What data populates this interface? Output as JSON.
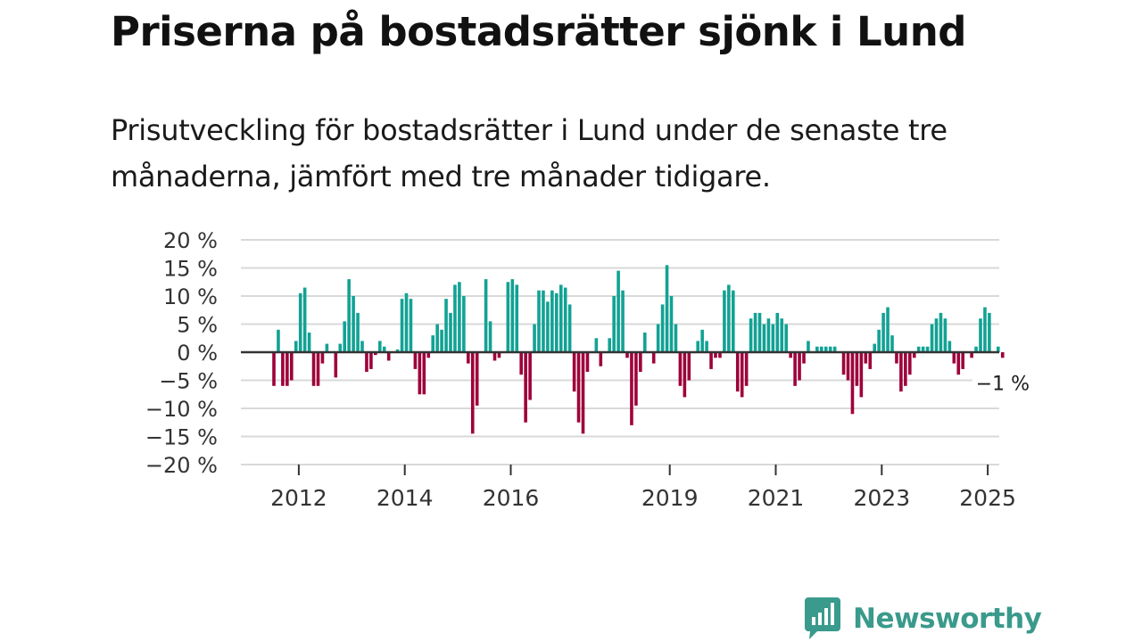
{
  "title": "Priserna på bostadsrätter sjönk i Lund",
  "subtitle": "Prisutveckling för bostadsrätter i Lund under de senaste tre månaderna, jämfört med tre månader tidigare.",
  "brand": {
    "name": "Newsworthy",
    "logo_icon": "newsworthy-logo-icon"
  },
  "colors": {
    "positive": "#12a294",
    "negative": "#9e003a",
    "grid": "#d9d9d9",
    "zero_line": "#333333",
    "brand": "#3a9a8c"
  },
  "chart_data": {
    "type": "bar",
    "title": "Priserna på bostadsrätter sjönk i Lund",
    "xlabel": "",
    "ylabel": "",
    "ylim": [
      -20,
      20
    ],
    "y_ticks": [
      20,
      15,
      10,
      5,
      0,
      -5,
      -10,
      -15,
      -20
    ],
    "y_tick_labels": [
      "20 %",
      "15 %",
      "10 %",
      "5 %",
      "0 %",
      "−5 %",
      "−10 %",
      "−15 %",
      "−20 %"
    ],
    "x_ticks": [
      {
        "label": "2012",
        "index": 6
      },
      {
        "label": "2014",
        "index": 30
      },
      {
        "label": "2016",
        "index": 54
      },
      {
        "label": "2019",
        "index": 90
      },
      {
        "label": "2021",
        "index": 114
      },
      {
        "label": "2023",
        "index": 138
      },
      {
        "label": "2025",
        "index": 162
      }
    ],
    "last_value_label": "−1 %",
    "values": [
      -6,
      4,
      -6,
      -6,
      -5,
      2,
      10.5,
      11.5,
      3.5,
      -6,
      -6,
      -2,
      1.5,
      0,
      -4.5,
      1.5,
      5.5,
      13,
      10,
      7,
      2,
      -3.5,
      -3,
      -0.5,
      2,
      1,
      -1.5,
      0,
      0.5,
      9.5,
      10.5,
      9.5,
      -3,
      -7.5,
      -7.5,
      -1,
      3,
      5,
      4,
      9.5,
      7,
      12,
      12.5,
      10,
      -2,
      -14.5,
      -9.5,
      0,
      13,
      5.5,
      -1.5,
      -1,
      0,
      12.5,
      13,
      12,
      -4,
      -12.5,
      -8.5,
      5,
      11,
      11,
      9,
      11,
      10.5,
      12,
      11.5,
      8.5,
      -7,
      -12.5,
      -14.5,
      -3.5,
      0,
      2.5,
      -2.5,
      0,
      2.5,
      10,
      14.5,
      11,
      -1,
      -13,
      -9.5,
      -3.5,
      3.5,
      0,
      -2,
      5,
      8.5,
      15.5,
      10,
      5,
      -6,
      -8,
      -5,
      0,
      2,
      4,
      2,
      -3,
      -1,
      -1,
      11,
      12,
      11,
      -7,
      -8,
      -6,
      6,
      7,
      7,
      5,
      6,
      5,
      7,
      6,
      5,
      -1,
      -6,
      -5,
      -2,
      2,
      0,
      1,
      1,
      1,
      1,
      1,
      0,
      -4,
      -5,
      -11,
      -6,
      -8,
      -2,
      -3,
      1.5,
      4,
      7,
      8,
      3,
      -2,
      -7,
      -6,
      -4,
      -1,
      1,
      1,
      1,
      5,
      6,
      7,
      6,
      2,
      -2,
      -4,
      -3,
      0,
      -1,
      1,
      6,
      8,
      7,
      0,
      1,
      -1
    ]
  }
}
